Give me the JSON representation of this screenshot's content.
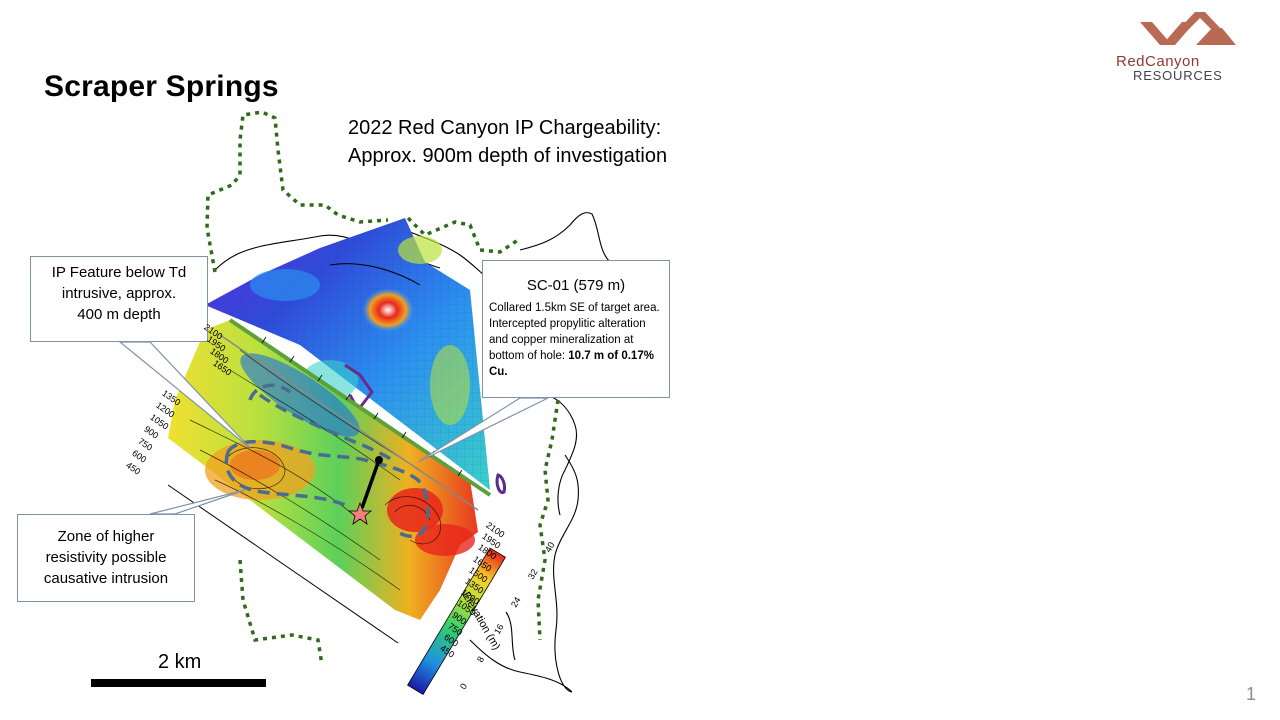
{
  "title": "Scraper Springs",
  "subtitle": {
    "line1": "2022 Red Canyon IP Chargeability:",
    "line2": "Approx. 900m depth of investigation"
  },
  "callouts": {
    "ip_feature": {
      "line1": "IP Feature below Td",
      "line2": "intrusive, approx.",
      "line3": "400 m depth"
    },
    "sc01": {
      "heading": "SC-01 (579 m)",
      "body": "Collared 1.5km SE of target area. Intercepted propylitic alteration and copper mineralization at bottom of hole: ",
      "bold": "10.7 m of 0.17% Cu."
    },
    "zone": {
      "line1": "Zone of higher",
      "line2": "resistivity possible",
      "line3": "causative intrusion"
    }
  },
  "scale": {
    "label": "2 km"
  },
  "page_number": "1",
  "logo": {
    "top": "RedCanyon",
    "bottom": "RESOURCES",
    "color": "#8c3b2f"
  },
  "section": {
    "left_ticks": [
      "1350",
      "1200",
      "1050",
      "900",
      "750",
      "600",
      "450"
    ],
    "top_ticks": [
      "2100",
      "1950",
      "1800",
      "1650"
    ],
    "right_ticks": [
      "2100",
      "1950",
      "1800",
      "1650",
      "1500",
      "1350",
      "1200",
      "1050",
      "900",
      "750",
      "600",
      "450"
    ],
    "axis_label": "Elevation (m)"
  },
  "colorbar": {
    "ticks": [
      "0",
      "8",
      "16",
      "24",
      "32",
      "40"
    ]
  },
  "colors": {
    "dotted_boundary": "#2e6b1a",
    "ip_dashed": "#4a6c8f",
    "drillhole_star": "#f08080",
    "feature_outline": "#5b2a8c"
  }
}
